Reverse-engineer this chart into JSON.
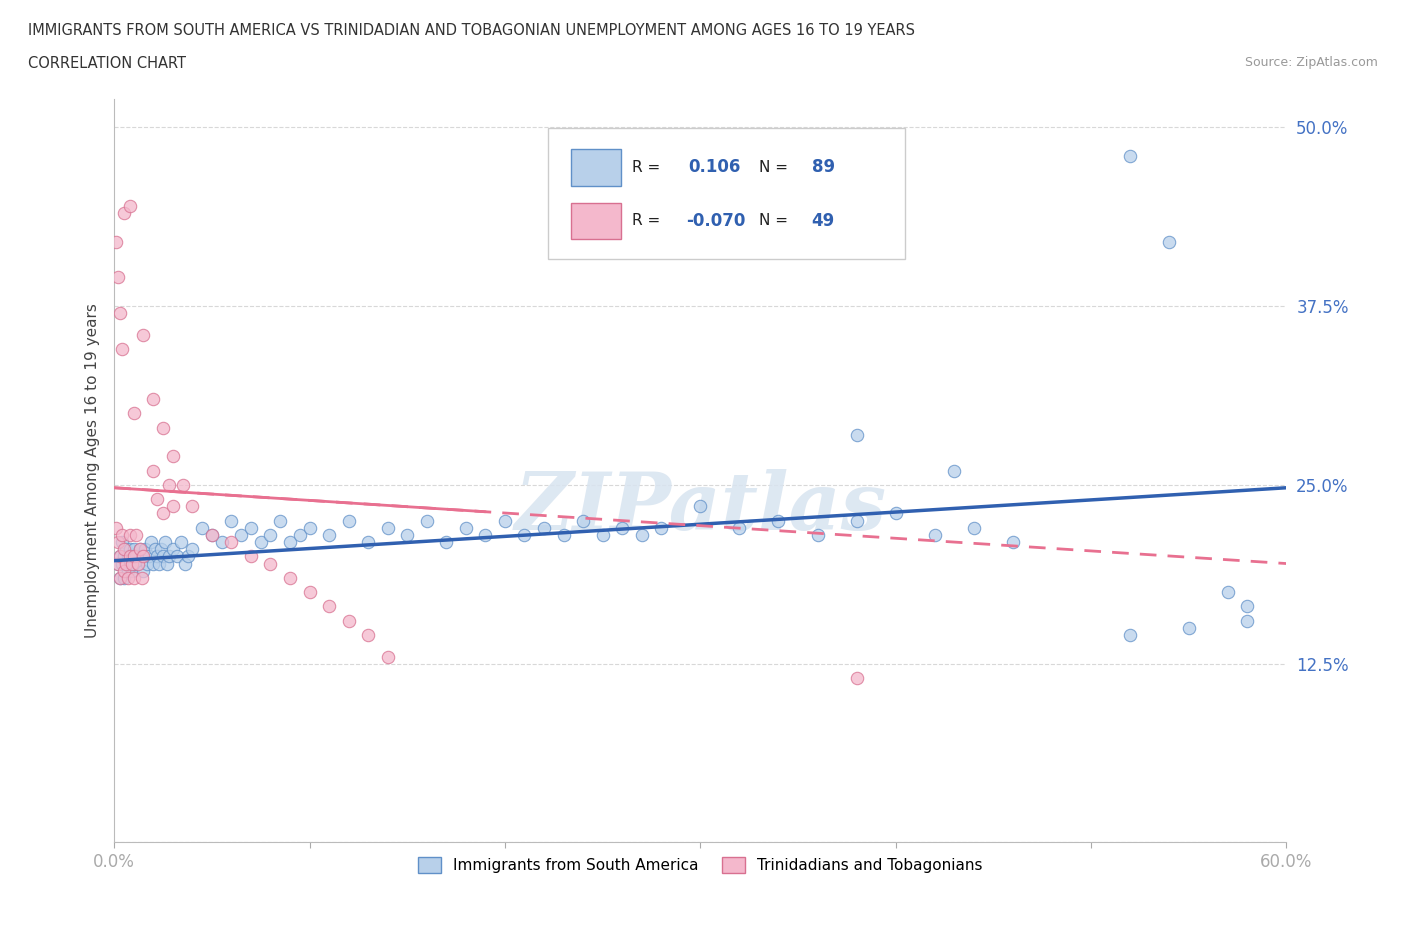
{
  "title_line1": "IMMIGRANTS FROM SOUTH AMERICA VS TRINIDADIAN AND TOBAGONIAN UNEMPLOYMENT AMONG AGES 16 TO 19 YEARS",
  "title_line2": "CORRELATION CHART",
  "source_text": "Source: ZipAtlas.com",
  "ylabel": "Unemployment Among Ages 16 to 19 years",
  "xlim": [
    0.0,
    0.6
  ],
  "ylim": [
    0.0,
    0.52
  ],
  "ytick_vals": [
    0.0,
    0.125,
    0.25,
    0.375,
    0.5
  ],
  "ytick_labels": [
    "",
    "12.5%",
    "25.0%",
    "37.5%",
    "50.0%"
  ],
  "xtick_vals": [
    0.0,
    0.1,
    0.2,
    0.3,
    0.4,
    0.5,
    0.6
  ],
  "xtick_labels": [
    "0.0%",
    "",
    "",
    "",
    "",
    "",
    "60.0%"
  ],
  "blue_fill": "#b8d0ea",
  "blue_edge": "#6090c8",
  "pink_fill": "#f4b8cc",
  "pink_edge": "#d87090",
  "blue_line_color": "#3060b0",
  "pink_line_color": "#e87090",
  "pink_dash_color": "#f0b0c8",
  "R_blue": 0.106,
  "N_blue": 89,
  "R_pink": -0.07,
  "N_pink": 49,
  "legend_label_blue": "Immigrants from South America",
  "legend_label_pink": "Trinidadians and Tobagonians",
  "watermark": "ZIPatlas",
  "blue_line_start_y": 0.197,
  "blue_line_end_y": 0.248,
  "pink_line_start_y": 0.248,
  "pink_line_end_y": 0.195
}
